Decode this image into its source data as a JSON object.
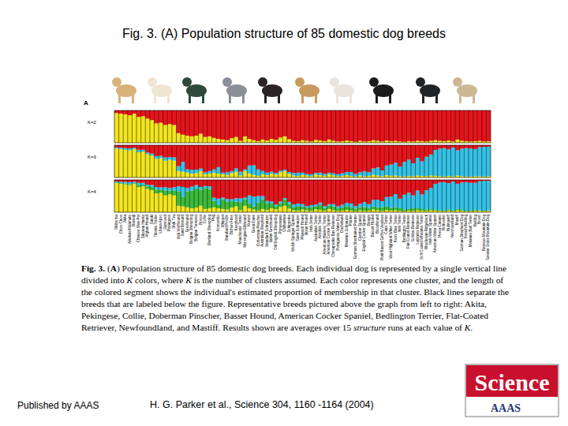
{
  "slide_title": "Fig. 3. (A) Population structure of 85 domestic dog breeds",
  "chart_data": {
    "type": "bar",
    "stacked": true,
    "panel_letter": "A",
    "tick_labels": "x",
    "ylim": [
      0,
      1
    ],
    "categories": [
      "Shiba Inu",
      "Chow Chow",
      "Akita",
      "Alaskan Malamute",
      "Basenji",
      "Chinese Shar-Pei",
      "Siberian Husky",
      "Afghan Hound",
      "Saluki",
      "Tibetan Terrier",
      "Lhasa Apso",
      "Samoyed",
      "Pekingese",
      "Shih Tzu",
      "Irish Wolfhound",
      "Saint Bernard",
      "Greyhound",
      "Belgian Sheepdog",
      "Belgian Tervuren",
      "Borzoi",
      "Collie",
      "Shetland Sheepdog",
      "Pug",
      "Komondor",
      "Whippet",
      "Standard Poodle",
      "Bichon Frise",
      "Keeshond",
      "Manchester Terrier",
      "Norwegian Elkhound",
      "Kuvasz",
      "Great Dane",
      "Doberman Pinscher",
      "Australian Shepherd",
      "Standard Schnauzer",
      "Italian Greyhound",
      "Old English Sheepdog",
      "Pomeranian",
      "Chihuahua",
      "Schipperke",
      "Welsh Springer Spaniel",
      "Giant Schnauzer",
      "Pharaoh Hound",
      "Ibizan Hound",
      "Irish Setter",
      "Australian Terrier",
      "Airedale Terrier",
      "American Hairless Terrier",
      "American Cocker Spaniel",
      "Chesapeake Bay Retriever",
      "Portuguese Water Dog",
      "Dachshund",
      "Miniature Schnauzer",
      "Pointer",
      "German Shorthaired Pointer",
      "Clumber Spaniel",
      "English Cocker Spaniel",
      "Beagle",
      "Basset Hound",
      "Bloodhound",
      "Petit Basset Griffon Vendeen",
      "Cairn Terrier",
      "West Highland White Terrier",
      "Kerry Blue Terrier",
      "Irish Terrier",
      "Bedlington Terrier",
      "Flat-Coated Retriever",
      "Golden Retriever",
      "Labrador Retriever",
      "Soft Coated Wheaten Terrier",
      "Rhodesian Ridgeback",
      "Irish Water Spaniel",
      "American Water Spaniel",
      "Presa Canario",
      "Rottweiler",
      "Bullmastiff",
      "Newfoundland",
      "Mastiff",
      "German Shepherd Dog",
      "French Bulldog",
      "Miniature Bull Terrier",
      "Bulldog",
      "Boxer",
      "Bernese Mountain Dog",
      "Greater Swiss Mountain Dog"
    ],
    "panels": [
      {
        "label": "K=2",
        "series": [
          {
            "color": "#f2e51d",
            "values": [
              0.92,
              0.9,
              0.88,
              0.85,
              0.9,
              0.8,
              0.82,
              0.75,
              0.7,
              0.6,
              0.62,
              0.55,
              0.58,
              0.55,
              0.3,
              0.25,
              0.22,
              0.2,
              0.22,
              0.28,
              0.18,
              0.2,
              0.15,
              0.12,
              0.1,
              0.08,
              0.14,
              0.18,
              0.06,
              0.2,
              0.12,
              0.08,
              0.05,
              0.1,
              0.07,
              0.12,
              0.09,
              0.16,
              0.2,
              0.11,
              0.06,
              0.05,
              0.08,
              0.06,
              0.04,
              0.09,
              0.07,
              0.05,
              0.1,
              0.06,
              0.04,
              0.05,
              0.07,
              0.05,
              0.03,
              0.06,
              0.04,
              0.05,
              0.08,
              0.06,
              0.04,
              0.07,
              0.05,
              0.06,
              0.04,
              0.03,
              0.05,
              0.04,
              0.06,
              0.05,
              0.04,
              0.06,
              0.08,
              0.06,
              0.05,
              0.07,
              0.04,
              0.1,
              0.06,
              0.05,
              0.04,
              0.05,
              0.06,
              0.04,
              0.05
            ]
          },
          {
            "color": "#e8141b",
            "values": [
              0.08,
              0.1,
              0.12,
              0.15,
              0.1,
              0.2,
              0.18,
              0.25,
              0.3,
              0.4,
              0.38,
              0.45,
              0.42,
              0.45,
              0.7,
              0.75,
              0.78,
              0.8,
              0.78,
              0.72,
              0.82,
              0.8,
              0.85,
              0.88,
              0.9,
              0.92,
              0.86,
              0.82,
              0.94,
              0.8,
              0.88,
              0.92,
              0.95,
              0.9,
              0.93,
              0.88,
              0.91,
              0.84,
              0.8,
              0.89,
              0.94,
              0.95,
              0.92,
              0.94,
              0.96,
              0.91,
              0.93,
              0.95,
              0.9,
              0.94,
              0.96,
              0.95,
              0.93,
              0.95,
              0.97,
              0.94,
              0.96,
              0.95,
              0.92,
              0.94,
              0.96,
              0.93,
              0.95,
              0.94,
              0.96,
              0.97,
              0.95,
              0.96,
              0.94,
              0.95,
              0.96,
              0.94,
              0.92,
              0.94,
              0.95,
              0.93,
              0.96,
              0.9,
              0.94,
              0.95,
              0.96,
              0.95,
              0.94,
              0.96,
              0.95
            ]
          }
        ]
      },
      {
        "label": "K=3",
        "series": [
          {
            "color": "#f2e51d",
            "values": [
              0.9,
              0.88,
              0.86,
              0.84,
              0.88,
              0.78,
              0.8,
              0.72,
              0.68,
              0.58,
              0.6,
              0.52,
              0.55,
              0.52,
              0.2,
              0.18,
              0.15,
              0.12,
              0.14,
              0.2,
              0.1,
              0.12,
              0.15,
              0.12,
              0.1,
              0.08,
              0.14,
              0.18,
              0.06,
              0.2,
              0.12,
              0.08,
              0.05,
              0.1,
              0.07,
              0.12,
              0.09,
              0.16,
              0.2,
              0.11,
              0.06,
              0.05,
              0.08,
              0.06,
              0.04,
              0.09,
              0.07,
              0.05,
              0.1,
              0.06,
              0.04,
              0.05,
              0.07,
              0.05,
              0.03,
              0.06,
              0.04,
              0.05,
              0.08,
              0.06,
              0.04,
              0.07,
              0.05,
              0.06,
              0.04,
              0.03,
              0.05,
              0.04,
              0.06,
              0.05,
              0.04,
              0.06,
              0.05,
              0.04,
              0.03,
              0.05,
              0.03,
              0.06,
              0.04,
              0.03,
              0.03,
              0.04,
              0.04,
              0.03,
              0.04
            ]
          },
          {
            "color": "#35c3e6",
            "values": [
              0.03,
              0.04,
              0.05,
              0.06,
              0.04,
              0.08,
              0.06,
              0.05,
              0.06,
              0.08,
              0.07,
              0.1,
              0.08,
              0.1,
              0.15,
              0.3,
              0.1,
              0.12,
              0.1,
              0.08,
              0.06,
              0.08,
              0.1,
              0.2,
              0.05,
              0.08,
              0.06,
              0.1,
              0.12,
              0.05,
              0.25,
              0.3,
              0.2,
              0.1,
              0.08,
              0.06,
              0.05,
              0.05,
              0.04,
              0.06,
              0.08,
              0.1,
              0.07,
              0.05,
              0.06,
              0.05,
              0.08,
              0.06,
              0.05,
              0.07,
              0.06,
              0.08,
              0.1,
              0.12,
              0.08,
              0.1,
              0.15,
              0.12,
              0.2,
              0.25,
              0.18,
              0.3,
              0.35,
              0.4,
              0.3,
              0.45,
              0.5,
              0.4,
              0.55,
              0.45,
              0.6,
              0.65,
              0.8,
              0.85,
              0.88,
              0.82,
              0.9,
              0.78,
              0.85,
              0.88,
              0.86,
              0.84,
              0.9,
              0.92,
              0.91
            ]
          },
          {
            "color": "#e8141b",
            "values": [
              0.07,
              0.08,
              0.09,
              0.1,
              0.08,
              0.14,
              0.14,
              0.23,
              0.26,
              0.34,
              0.33,
              0.38,
              0.37,
              0.38,
              0.65,
              0.52,
              0.75,
              0.76,
              0.76,
              0.72,
              0.84,
              0.8,
              0.75,
              0.68,
              0.85,
              0.84,
              0.8,
              0.72,
              0.82,
              0.75,
              0.63,
              0.62,
              0.75,
              0.8,
              0.85,
              0.82,
              0.86,
              0.79,
              0.76,
              0.83,
              0.86,
              0.85,
              0.85,
              0.89,
              0.9,
              0.86,
              0.85,
              0.89,
              0.85,
              0.87,
              0.9,
              0.87,
              0.83,
              0.83,
              0.89,
              0.84,
              0.81,
              0.83,
              0.72,
              0.69,
              0.78,
              0.63,
              0.6,
              0.54,
              0.66,
              0.52,
              0.45,
              0.56,
              0.39,
              0.5,
              0.36,
              0.29,
              0.15,
              0.11,
              0.09,
              0.13,
              0.07,
              0.16,
              0.11,
              0.09,
              0.11,
              0.12,
              0.06,
              0.05,
              0.05
            ]
          }
        ]
      },
      {
        "label": "K=4",
        "series": [
          {
            "color": "#f2e51d",
            "values": [
              0.9,
              0.88,
              0.86,
              0.84,
              0.88,
              0.78,
              0.8,
              0.72,
              0.68,
              0.58,
              0.6,
              0.52,
              0.55,
              0.52,
              0.2,
              0.18,
              0.15,
              0.12,
              0.14,
              0.2,
              0.1,
              0.12,
              0.15,
              0.12,
              0.1,
              0.08,
              0.14,
              0.18,
              0.06,
              0.2,
              0.12,
              0.08,
              0.05,
              0.1,
              0.07,
              0.12,
              0.09,
              0.16,
              0.2,
              0.11,
              0.06,
              0.05,
              0.08,
              0.06,
              0.04,
              0.09,
              0.07,
              0.05,
              0.1,
              0.06,
              0.04,
              0.05,
              0.07,
              0.05,
              0.03,
              0.06,
              0.04,
              0.05,
              0.08,
              0.06,
              0.04,
              0.07,
              0.05,
              0.06,
              0.04,
              0.03,
              0.05,
              0.04,
              0.06,
              0.05,
              0.04,
              0.06,
              0.05,
              0.04,
              0.03,
              0.05,
              0.03,
              0.06,
              0.04,
              0.03,
              0.03,
              0.04,
              0.04,
              0.03,
              0.04
            ]
          },
          {
            "color": "#3dbb3a",
            "values": [
              0.02,
              0.02,
              0.03,
              0.03,
              0.02,
              0.05,
              0.05,
              0.08,
              0.1,
              0.12,
              0.1,
              0.15,
              0.12,
              0.15,
              0.45,
              0.3,
              0.5,
              0.55,
              0.6,
              0.5,
              0.65,
              0.6,
              0.2,
              0.1,
              0.3,
              0.25,
              0.2,
              0.15,
              0.25,
              0.2,
              0.15,
              0.1,
              0.25,
              0.3,
              0.2,
              0.15,
              0.1,
              0.12,
              0.2,
              0.15,
              0.1,
              0.12,
              0.1,
              0.08,
              0.12,
              0.1,
              0.15,
              0.08,
              0.1,
              0.12,
              0.08,
              0.1,
              0.12,
              0.1,
              0.08,
              0.1,
              0.12,
              0.08,
              0.1,
              0.08,
              0.12,
              0.1,
              0.08,
              0.1,
              0.08,
              0.06,
              0.05,
              0.08,
              0.06,
              0.05,
              0.04,
              0.04,
              0.03,
              0.03,
              0.02,
              0.03,
              0.02,
              0.04,
              0.03,
              0.02,
              0.02,
              0.03,
              0.02,
              0.02,
              0.02
            ]
          },
          {
            "color": "#35c3e6",
            "values": [
              0.03,
              0.04,
              0.05,
              0.06,
              0.04,
              0.08,
              0.06,
              0.05,
              0.06,
              0.08,
              0.07,
              0.1,
              0.08,
              0.1,
              0.15,
              0.3,
              0.1,
              0.12,
              0.1,
              0.08,
              0.06,
              0.08,
              0.1,
              0.2,
              0.05,
              0.08,
              0.06,
              0.1,
              0.12,
              0.05,
              0.25,
              0.3,
              0.2,
              0.1,
              0.08,
              0.06,
              0.05,
              0.05,
              0.04,
              0.06,
              0.08,
              0.1,
              0.07,
              0.05,
              0.06,
              0.05,
              0.08,
              0.06,
              0.05,
              0.07,
              0.06,
              0.08,
              0.1,
              0.12,
              0.08,
              0.1,
              0.15,
              0.12,
              0.2,
              0.25,
              0.18,
              0.3,
              0.35,
              0.4,
              0.3,
              0.45,
              0.5,
              0.4,
              0.55,
              0.45,
              0.6,
              0.65,
              0.8,
              0.85,
              0.88,
              0.82,
              0.9,
              0.78,
              0.85,
              0.88,
              0.86,
              0.84,
              0.9,
              0.92,
              0.91
            ]
          },
          {
            "color": "#e8141b",
            "values": [
              0.05,
              0.06,
              0.06,
              0.07,
              0.06,
              0.09,
              0.09,
              0.15,
              0.16,
              0.22,
              0.23,
              0.23,
              0.25,
              0.23,
              0.2,
              0.22,
              0.25,
              0.21,
              0.16,
              0.22,
              0.19,
              0.2,
              0.55,
              0.58,
              0.55,
              0.59,
              0.6,
              0.57,
              0.57,
              0.55,
              0.48,
              0.52,
              0.5,
              0.5,
              0.65,
              0.67,
              0.76,
              0.67,
              0.56,
              0.68,
              0.76,
              0.73,
              0.75,
              0.81,
              0.78,
              0.76,
              0.7,
              0.81,
              0.75,
              0.75,
              0.82,
              0.77,
              0.71,
              0.73,
              0.81,
              0.74,
              0.69,
              0.75,
              0.62,
              0.61,
              0.66,
              0.53,
              0.52,
              0.44,
              0.58,
              0.46,
              0.4,
              0.48,
              0.33,
              0.45,
              0.32,
              0.25,
              0.12,
              0.08,
              0.07,
              0.1,
              0.05,
              0.12,
              0.08,
              0.07,
              0.09,
              0.09,
              0.04,
              0.03,
              0.03
            ]
          }
        ]
      }
    ]
  },
  "caption": [
    {
      "text": "Fig. 3.",
      "weight": "bold"
    },
    {
      "text": " ("
    },
    {
      "text": "A",
      "weight": "bold"
    },
    {
      "text": ") Population structure of 85 domestic dog breeds. Each individual dog is represented by a single vertical line divided into "
    },
    {
      "text": "K",
      "style": "italic"
    },
    {
      "text": " colors, where "
    },
    {
      "text": "K",
      "style": "italic"
    },
    {
      "text": " is the number of clusters assumed. Each color represents one cluster, and the length of the colored segment shows the individual's estimated proportion of membership in that cluster. Black lines separate the breeds that are labeled below the figure. Representative breeds pictured above the graph from left to right: Akita, Pekingese, Collie, Doberman Pinscher, Basset Hound, American Cocker Spaniel, Bedlington Terrier, Flat-Coated Retriever, Newfoundland, and Mastiff. Results shown are averages over 15 "
    },
    {
      "text": "structure",
      "style": "italic"
    },
    {
      "text": " runs at each value of "
    },
    {
      "text": "K",
      "style": "italic"
    },
    {
      "text": "."
    }
  ],
  "footer": {
    "left": "Published by AAAS",
    "center": "H. G.  Parker et al., Science  304, 1160 -1164 (2004)",
    "logo": "Science",
    "logo_sub": "AAAS"
  }
}
